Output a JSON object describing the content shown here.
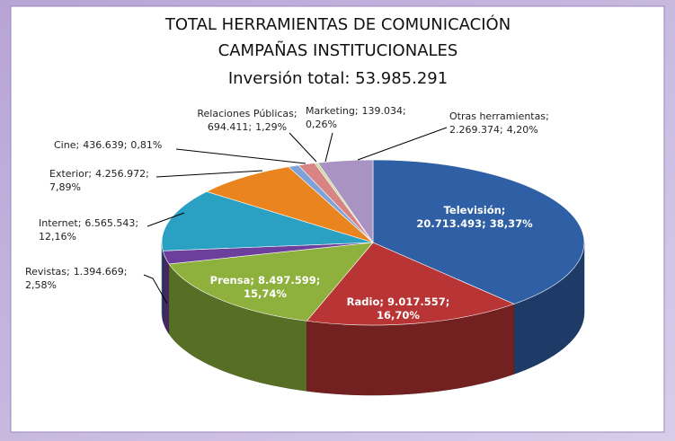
{
  "chart_data": {
    "type": "pie3d",
    "title": "TOTAL HERRAMIENTAS DE COMUNICACIÓN",
    "subtitle": "CAMPAÑAS INSTITUCIONALES",
    "total_label": "Inversión total: 53.985.291",
    "label_separator": ";",
    "categories": [
      "Televisión",
      "Radio",
      "Prensa",
      "Revistas",
      "Internet",
      "Exterior",
      "Cine",
      "Relaciones Públicas",
      "Marketing",
      "Otras herramientas"
    ],
    "values": [
      20713493,
      9017557,
      8497599,
      1394669,
      6565543,
      4256972,
      436639,
      694411,
      139034,
      2269374
    ],
    "value_labels": [
      "20.713.493",
      "9.017.557",
      "8.497.599",
      "1.394.669",
      "6.565.543",
      "4.256.972",
      "436.639",
      "694.411",
      "139.034",
      "2.269.374"
    ],
    "percents": [
      38.37,
      16.7,
      15.74,
      2.58,
      12.16,
      7.89,
      0.81,
      1.29,
      0.26,
      4.2
    ],
    "percent_labels": [
      "38,37%",
      "16,70%",
      "15,74%",
      "2,58%",
      "12,16%",
      "7,89%",
      "0,81%",
      "1,29%",
      "0,26%",
      "4,20%"
    ],
    "colors": [
      "#2f5fa5",
      "#b93434",
      "#8db13c",
      "#6b3f9b",
      "#2aa1c2",
      "#ea841f",
      "#7ea2d8",
      "#d98484",
      "#c8dc9c",
      "#a893c2"
    ]
  }
}
